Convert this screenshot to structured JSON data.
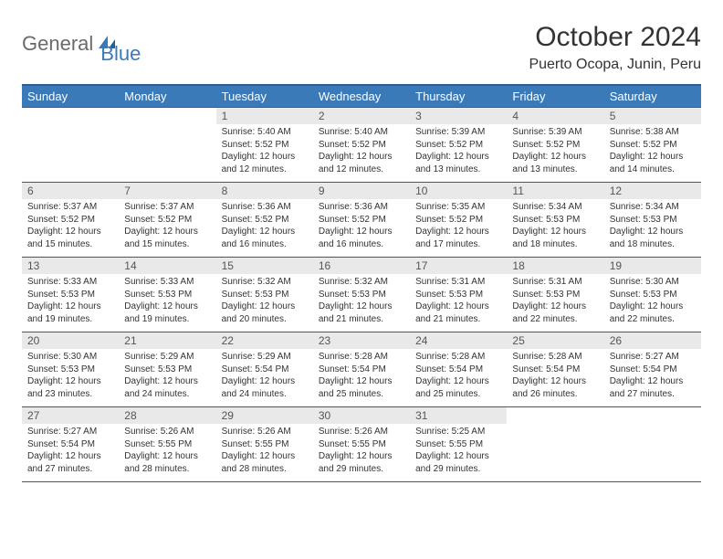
{
  "logo": {
    "text1": "General",
    "text2": "Blue"
  },
  "title": "October 2024",
  "location": "Puerto Ocopa, Junin, Peru",
  "colors": {
    "header_bg": "#3a7ab8",
    "header_border": "#2d5d8f",
    "daynum_bg": "#e9e9e9",
    "text": "#333333",
    "logo_gray": "#6a6a6a",
    "logo_blue": "#3a7ab8",
    "background": "#ffffff"
  },
  "weekdays": [
    "Sunday",
    "Monday",
    "Tuesday",
    "Wednesday",
    "Thursday",
    "Friday",
    "Saturday"
  ],
  "weeks": [
    [
      null,
      null,
      {
        "d": "1",
        "sr": "Sunrise: 5:40 AM",
        "ss": "Sunset: 5:52 PM",
        "dl1": "Daylight: 12 hours",
        "dl2": "and 12 minutes."
      },
      {
        "d": "2",
        "sr": "Sunrise: 5:40 AM",
        "ss": "Sunset: 5:52 PM",
        "dl1": "Daylight: 12 hours",
        "dl2": "and 12 minutes."
      },
      {
        "d": "3",
        "sr": "Sunrise: 5:39 AM",
        "ss": "Sunset: 5:52 PM",
        "dl1": "Daylight: 12 hours",
        "dl2": "and 13 minutes."
      },
      {
        "d": "4",
        "sr": "Sunrise: 5:39 AM",
        "ss": "Sunset: 5:52 PM",
        "dl1": "Daylight: 12 hours",
        "dl2": "and 13 minutes."
      },
      {
        "d": "5",
        "sr": "Sunrise: 5:38 AM",
        "ss": "Sunset: 5:52 PM",
        "dl1": "Daylight: 12 hours",
        "dl2": "and 14 minutes."
      }
    ],
    [
      {
        "d": "6",
        "sr": "Sunrise: 5:37 AM",
        "ss": "Sunset: 5:52 PM",
        "dl1": "Daylight: 12 hours",
        "dl2": "and 15 minutes."
      },
      {
        "d": "7",
        "sr": "Sunrise: 5:37 AM",
        "ss": "Sunset: 5:52 PM",
        "dl1": "Daylight: 12 hours",
        "dl2": "and 15 minutes."
      },
      {
        "d": "8",
        "sr": "Sunrise: 5:36 AM",
        "ss": "Sunset: 5:52 PM",
        "dl1": "Daylight: 12 hours",
        "dl2": "and 16 minutes."
      },
      {
        "d": "9",
        "sr": "Sunrise: 5:36 AM",
        "ss": "Sunset: 5:52 PM",
        "dl1": "Daylight: 12 hours",
        "dl2": "and 16 minutes."
      },
      {
        "d": "10",
        "sr": "Sunrise: 5:35 AM",
        "ss": "Sunset: 5:52 PM",
        "dl1": "Daylight: 12 hours",
        "dl2": "and 17 minutes."
      },
      {
        "d": "11",
        "sr": "Sunrise: 5:34 AM",
        "ss": "Sunset: 5:53 PM",
        "dl1": "Daylight: 12 hours",
        "dl2": "and 18 minutes."
      },
      {
        "d": "12",
        "sr": "Sunrise: 5:34 AM",
        "ss": "Sunset: 5:53 PM",
        "dl1": "Daylight: 12 hours",
        "dl2": "and 18 minutes."
      }
    ],
    [
      {
        "d": "13",
        "sr": "Sunrise: 5:33 AM",
        "ss": "Sunset: 5:53 PM",
        "dl1": "Daylight: 12 hours",
        "dl2": "and 19 minutes."
      },
      {
        "d": "14",
        "sr": "Sunrise: 5:33 AM",
        "ss": "Sunset: 5:53 PM",
        "dl1": "Daylight: 12 hours",
        "dl2": "and 19 minutes."
      },
      {
        "d": "15",
        "sr": "Sunrise: 5:32 AM",
        "ss": "Sunset: 5:53 PM",
        "dl1": "Daylight: 12 hours",
        "dl2": "and 20 minutes."
      },
      {
        "d": "16",
        "sr": "Sunrise: 5:32 AM",
        "ss": "Sunset: 5:53 PM",
        "dl1": "Daylight: 12 hours",
        "dl2": "and 21 minutes."
      },
      {
        "d": "17",
        "sr": "Sunrise: 5:31 AM",
        "ss": "Sunset: 5:53 PM",
        "dl1": "Daylight: 12 hours",
        "dl2": "and 21 minutes."
      },
      {
        "d": "18",
        "sr": "Sunrise: 5:31 AM",
        "ss": "Sunset: 5:53 PM",
        "dl1": "Daylight: 12 hours",
        "dl2": "and 22 minutes."
      },
      {
        "d": "19",
        "sr": "Sunrise: 5:30 AM",
        "ss": "Sunset: 5:53 PM",
        "dl1": "Daylight: 12 hours",
        "dl2": "and 22 minutes."
      }
    ],
    [
      {
        "d": "20",
        "sr": "Sunrise: 5:30 AM",
        "ss": "Sunset: 5:53 PM",
        "dl1": "Daylight: 12 hours",
        "dl2": "and 23 minutes."
      },
      {
        "d": "21",
        "sr": "Sunrise: 5:29 AM",
        "ss": "Sunset: 5:53 PM",
        "dl1": "Daylight: 12 hours",
        "dl2": "and 24 minutes."
      },
      {
        "d": "22",
        "sr": "Sunrise: 5:29 AM",
        "ss": "Sunset: 5:54 PM",
        "dl1": "Daylight: 12 hours",
        "dl2": "and 24 minutes."
      },
      {
        "d": "23",
        "sr": "Sunrise: 5:28 AM",
        "ss": "Sunset: 5:54 PM",
        "dl1": "Daylight: 12 hours",
        "dl2": "and 25 minutes."
      },
      {
        "d": "24",
        "sr": "Sunrise: 5:28 AM",
        "ss": "Sunset: 5:54 PM",
        "dl1": "Daylight: 12 hours",
        "dl2": "and 25 minutes."
      },
      {
        "d": "25",
        "sr": "Sunrise: 5:28 AM",
        "ss": "Sunset: 5:54 PM",
        "dl1": "Daylight: 12 hours",
        "dl2": "and 26 minutes."
      },
      {
        "d": "26",
        "sr": "Sunrise: 5:27 AM",
        "ss": "Sunset: 5:54 PM",
        "dl1": "Daylight: 12 hours",
        "dl2": "and 27 minutes."
      }
    ],
    [
      {
        "d": "27",
        "sr": "Sunrise: 5:27 AM",
        "ss": "Sunset: 5:54 PM",
        "dl1": "Daylight: 12 hours",
        "dl2": "and 27 minutes."
      },
      {
        "d": "28",
        "sr": "Sunrise: 5:26 AM",
        "ss": "Sunset: 5:55 PM",
        "dl1": "Daylight: 12 hours",
        "dl2": "and 28 minutes."
      },
      {
        "d": "29",
        "sr": "Sunrise: 5:26 AM",
        "ss": "Sunset: 5:55 PM",
        "dl1": "Daylight: 12 hours",
        "dl2": "and 28 minutes."
      },
      {
        "d": "30",
        "sr": "Sunrise: 5:26 AM",
        "ss": "Sunset: 5:55 PM",
        "dl1": "Daylight: 12 hours",
        "dl2": "and 29 minutes."
      },
      {
        "d": "31",
        "sr": "Sunrise: 5:25 AM",
        "ss": "Sunset: 5:55 PM",
        "dl1": "Daylight: 12 hours",
        "dl2": "and 29 minutes."
      },
      null,
      null
    ]
  ]
}
